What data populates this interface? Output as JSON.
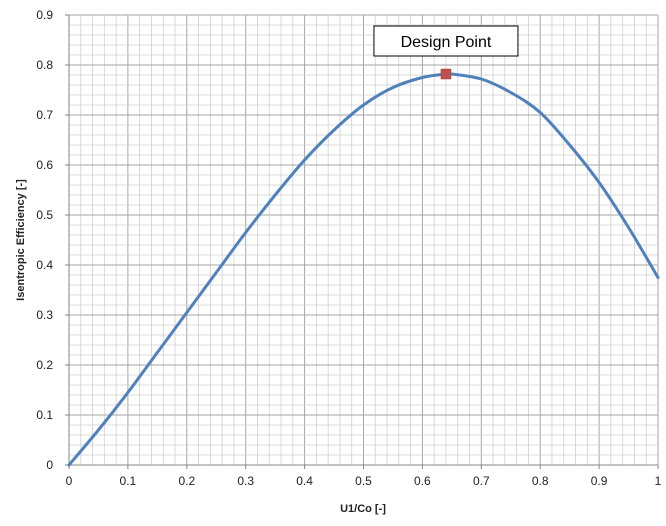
{
  "chart_data": {
    "type": "line",
    "title": "",
    "xlabel": "U1/Co [-]",
    "ylabel": "Isentropic Efficiency [-]",
    "xlim": [
      0,
      1
    ],
    "ylim": [
      0,
      0.9
    ],
    "x_ticks": [
      "0",
      "0.1",
      "0.2",
      "0.3",
      "0.4",
      "0.5",
      "0.6",
      "0.7",
      "0.8",
      "0.9",
      "1"
    ],
    "y_ticks": [
      "0",
      "0.1",
      "0.2",
      "0.3",
      "0.4",
      "0.5",
      "0.6",
      "0.7",
      "0.8",
      "0.9"
    ],
    "grid": true,
    "series": [
      {
        "color": "#4f81bd",
        "x": [
          0,
          0.05,
          0.1,
          0.15,
          0.2,
          0.25,
          0.3,
          0.35,
          0.4,
          0.45,
          0.5,
          0.55,
          0.6,
          0.64,
          0.65,
          0.7,
          0.75,
          0.8,
          0.85,
          0.9,
          0.95,
          1.0
        ],
        "y": [
          0,
          0.07,
          0.145,
          0.225,
          0.305,
          0.385,
          0.465,
          0.54,
          0.61,
          0.67,
          0.72,
          0.755,
          0.775,
          0.782,
          0.782,
          0.772,
          0.745,
          0.705,
          0.64,
          0.565,
          0.475,
          0.375
        ]
      }
    ],
    "annotations": [
      {
        "text": "Design Point",
        "x": 0.64,
        "y": 0.782,
        "marker_color": "#c0504d"
      }
    ]
  }
}
